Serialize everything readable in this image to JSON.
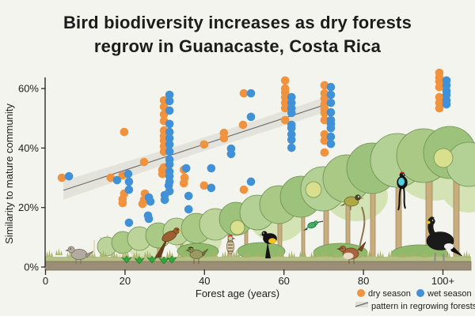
{
  "title": {
    "line1": "Bird biodiversity increases as dry forests",
    "line2": "regrow in Guanacaste, Costa Rica"
  },
  "colors": {
    "background": "#f3f4ed",
    "dry": "#f0923e",
    "wet": "#4191d9",
    "trend_line": "#6b6b6b",
    "trend_band": "#dfdfd8",
    "axis": "#2a2a2a"
  },
  "chart_data": {
    "type": "scatter",
    "title": "Bird biodiversity increases as dry forests regrow in Guanacaste, Costa Rica",
    "xlabel": "Forest age (years)",
    "ylabel": "Similarity to mature community",
    "xlim": [
      0,
      107
    ],
    "ylim": [
      0,
      66
    ],
    "grid": false,
    "legend_position": "bottom-right",
    "x_ticks": [
      {
        "value": 0,
        "label": "0"
      },
      {
        "value": 20,
        "label": "20"
      },
      {
        "value": 40,
        "label": "40"
      },
      {
        "value": 60,
        "label": "60"
      },
      {
        "value": 80,
        "label": "80"
      },
      {
        "value": 100,
        "label": "100+"
      }
    ],
    "y_ticks": [
      {
        "value": 0,
        "label": "0%"
      },
      {
        "value": 20,
        "label": "20%"
      },
      {
        "value": 40,
        "label": "40%"
      },
      {
        "value": 60,
        "label": "60%"
      }
    ],
    "series": [
      {
        "name": "dry season",
        "color": "#f0923e",
        "points": [
          [
            4.1,
            30.0
          ],
          [
            16.4,
            30.0
          ],
          [
            19.4,
            30.8
          ],
          [
            19.8,
            45.4
          ],
          [
            19.8,
            24.7
          ],
          [
            19.4,
            22.8
          ],
          [
            19.4,
            21.5
          ],
          [
            24.8,
            35.3
          ],
          [
            25.0,
            24.7
          ],
          [
            24.8,
            22.6
          ],
          [
            24.4,
            21.2
          ],
          [
            29.4,
            32.7
          ],
          [
            29.4,
            31.3
          ],
          [
            29.8,
            56.0
          ],
          [
            29.8,
            53.9
          ],
          [
            29.8,
            51.3
          ],
          [
            29.8,
            49.1
          ],
          [
            29.8,
            45.9
          ],
          [
            29.8,
            44.1
          ],
          [
            29.8,
            42.5
          ],
          [
            29.8,
            40.6
          ],
          [
            29.8,
            38.8
          ],
          [
            29.8,
            33.5
          ],
          [
            29.8,
            32.1
          ],
          [
            34.8,
            32.7
          ],
          [
            35.0,
            30.0
          ],
          [
            34.8,
            28.2
          ],
          [
            39.9,
            41.2
          ],
          [
            39.9,
            27.4
          ],
          [
            44.9,
            45.1
          ],
          [
            44.9,
            43.3
          ],
          [
            49.9,
            58.4
          ],
          [
            49.7,
            47.8
          ],
          [
            49.9,
            26.0
          ],
          [
            60.3,
            62.7
          ],
          [
            60.3,
            60.0
          ],
          [
            60.3,
            58.7
          ],
          [
            60.3,
            57.1
          ],
          [
            60.3,
            55.2
          ],
          [
            60.3,
            53.4
          ],
          [
            60.3,
            49.4
          ],
          [
            70.2,
            61.1
          ],
          [
            70.2,
            58.4
          ],
          [
            70.2,
            56.6
          ],
          [
            70.2,
            54.7
          ],
          [
            70.2,
            53.1
          ],
          [
            70.2,
            51.8
          ],
          [
            70.2,
            49.4
          ],
          [
            70.2,
            44.6
          ],
          [
            70.2,
            42.5
          ],
          [
            70.2,
            38.5
          ],
          [
            99.1,
            65.3
          ],
          [
            99.1,
            63.7
          ],
          [
            99.1,
            62.4
          ],
          [
            99.1,
            60.5
          ],
          [
            99.1,
            57.1
          ],
          [
            99.1,
            55.2
          ],
          [
            99.1,
            53.4
          ]
        ]
      },
      {
        "name": "wet season",
        "color": "#4191d9",
        "points": [
          [
            5.9,
            30.5
          ],
          [
            18.0,
            29.2
          ],
          [
            20.8,
            31.3
          ],
          [
            21.0,
            28.7
          ],
          [
            21.0,
            26.0
          ],
          [
            21.0,
            14.9
          ],
          [
            26.0,
            23.4
          ],
          [
            26.4,
            22.0
          ],
          [
            26.0,
            16.2
          ],
          [
            25.8,
            17.3
          ],
          [
            31.2,
            57.9
          ],
          [
            31.2,
            55.8
          ],
          [
            31.2,
            52.6
          ],
          [
            31.2,
            48.1
          ],
          [
            31.2,
            45.4
          ],
          [
            31.2,
            43.3
          ],
          [
            31.2,
            41.2
          ],
          [
            31.2,
            38.8
          ],
          [
            31.2,
            36.1
          ],
          [
            31.2,
            34.5
          ],
          [
            31.2,
            32.1
          ],
          [
            31.2,
            30.5
          ],
          [
            31.2,
            28.7
          ],
          [
            31.2,
            25.5
          ],
          [
            30.0,
            24.2
          ],
          [
            30.0,
            22.6
          ],
          [
            31.0,
            27.4
          ],
          [
            35.4,
            33.2
          ],
          [
            36.0,
            23.9
          ],
          [
            36.0,
            19.4
          ],
          [
            41.7,
            33.2
          ],
          [
            41.7,
            26.6
          ],
          [
            46.7,
            39.8
          ],
          [
            46.7,
            38.0
          ],
          [
            51.7,
            58.4
          ],
          [
            51.7,
            50.5
          ],
          [
            51.7,
            28.7
          ],
          [
            61.9,
            57.1
          ],
          [
            61.9,
            55.2
          ],
          [
            61.9,
            53.4
          ],
          [
            61.9,
            51.8
          ],
          [
            61.9,
            47.8
          ],
          [
            61.9,
            46.7
          ],
          [
            61.9,
            44.6
          ],
          [
            61.9,
            42.8
          ],
          [
            61.9,
            40.1
          ],
          [
            71.8,
            60.5
          ],
          [
            71.8,
            57.9
          ],
          [
            71.8,
            55.2
          ],
          [
            71.8,
            52.0
          ],
          [
            71.8,
            49.4
          ],
          [
            71.8,
            48.1
          ],
          [
            71.8,
            46.7
          ],
          [
            71.8,
            43.8
          ],
          [
            71.8,
            41.4
          ],
          [
            100.9,
            62.7
          ],
          [
            100.9,
            61.1
          ],
          [
            100.9,
            59.2
          ],
          [
            100.9,
            57.9
          ],
          [
            100.9,
            56.0
          ],
          [
            100.9,
            54.7
          ]
        ]
      }
    ],
    "trend": {
      "label": "pattern in regrowing forests",
      "description": "linear fit with gray confidence band",
      "x": [
        4.5,
        70.0
      ],
      "y": [
        25.8,
        54.4
      ]
    }
  }
}
